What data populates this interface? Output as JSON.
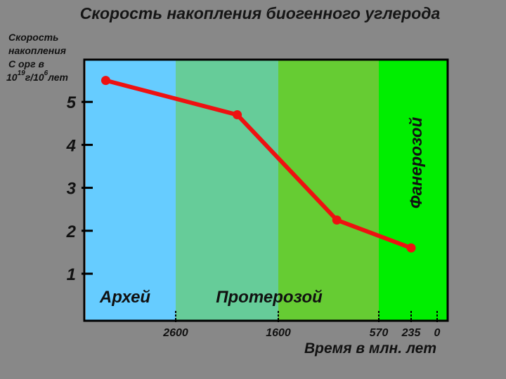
{
  "title": "Скорость накопления биогенного углерода",
  "ylabel": {
    "line1": "Скорость",
    "line2": "накопления",
    "line3": "С орг в",
    "base1": "10",
    "exp1": "19",
    "mid": "г/10",
    "exp2": "6",
    "tail": "лет"
  },
  "colors": {
    "background": "#888888",
    "series": "#ee1111",
    "archean": "#66ccff",
    "proterozoic_early": "#66cc99",
    "proterozoic_late": "#66cc33",
    "phanerozoic": "#00ee00"
  },
  "chart_data": {
    "type": "line",
    "title": "Скорость накопления биогенного углерода",
    "xlabel": "Время в млн. лет",
    "ylabel": "Скорость накопления С орг в 10^19 г/10^6 лет",
    "x_reversed": true,
    "x_ticks": [
      2600,
      1600,
      570,
      235,
      0
    ],
    "x_tick_labels": [
      "2600",
      "1600",
      "570",
      "235",
      "0"
    ],
    "y_ticks": [
      1,
      2,
      3,
      4,
      5
    ],
    "y_tick_labels": [
      "1",
      "2",
      "3",
      "4",
      "5"
    ],
    "ylim": [
      0,
      6
    ],
    "series": [
      {
        "points": [
          {
            "x": 3300,
            "y": 5.5
          },
          {
            "x": 2000,
            "y": 4.7
          },
          {
            "x": 1000,
            "y": 2.25
          },
          {
            "x": 235,
            "y": 1.6
          }
        ]
      }
    ],
    "eras": [
      {
        "name": "Архей",
        "from": 3500,
        "to": 2600
      },
      {
        "name": "Протерозой",
        "from": 2600,
        "to": 570
      },
      {
        "name": "Фанерозой",
        "from": 570,
        "to": -100
      }
    ],
    "grid": false,
    "legend": "none"
  }
}
